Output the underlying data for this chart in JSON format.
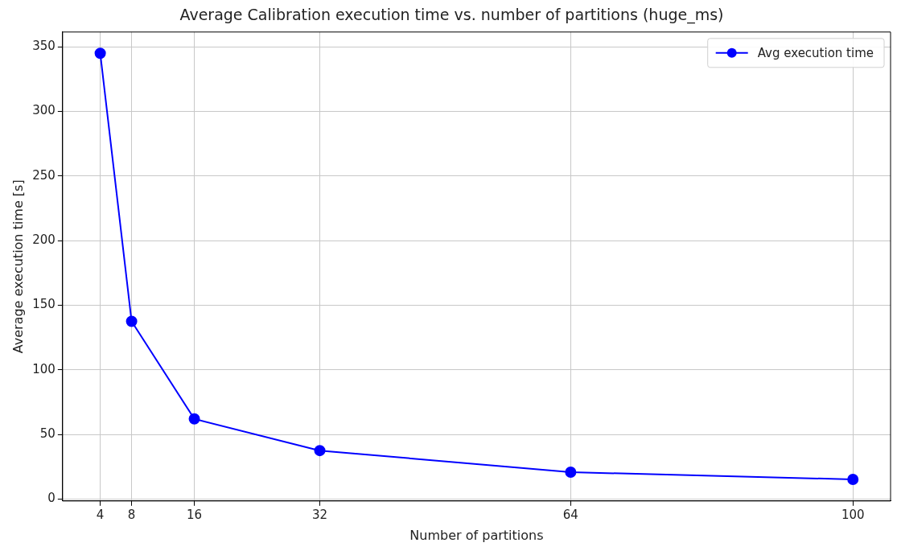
{
  "chart_data": {
    "type": "line",
    "title": "Average Calibration execution time vs. number of partitions (huge_ms)",
    "xlabel": "Number of partitions",
    "ylabel": "Average execution time [s]",
    "x": [
      4,
      8,
      16,
      32,
      64,
      100
    ],
    "series": [
      {
        "name": "Avg execution time",
        "color": "#0000ff",
        "values": [
          345,
          137.5,
          62,
          37.5,
          20.8,
          15.2
        ]
      }
    ],
    "xlim": [
      -0.8,
      104.8
    ],
    "xticks": [
      4,
      8,
      16,
      32,
      64,
      100
    ],
    "ylim": [
      -1.5,
      361.5
    ],
    "yticks": [
      0,
      50,
      100,
      150,
      200,
      250,
      300,
      350
    ],
    "grid": true,
    "legend": "top right",
    "marker": "circle",
    "line_style": "solid"
  }
}
